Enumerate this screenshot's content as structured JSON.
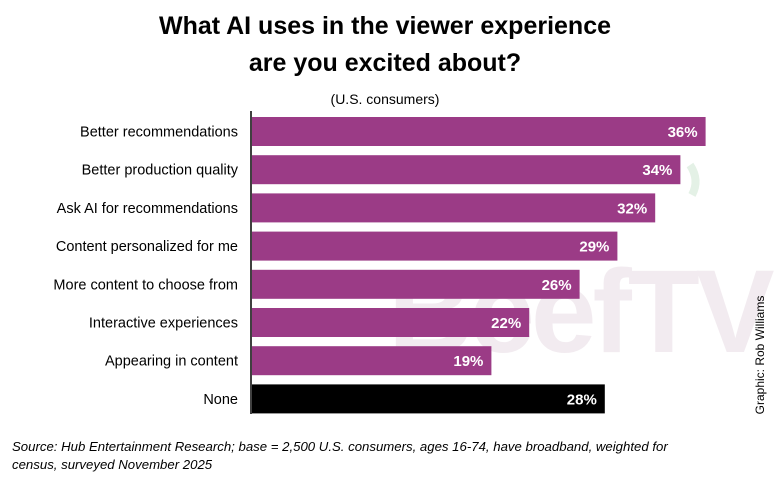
{
  "colors": {
    "bar": "#9b3b86",
    "highlight_bar": "#000000",
    "bar_label": "#ffffff",
    "text": "#000000",
    "axis": "#000000",
    "watermark": "#e8dce4"
  },
  "watermark": {
    "text": "BeefTV"
  },
  "credit": "Graphic: Rob Williams",
  "source": {
    "line1": "Source: Hub Entertainment Research; base = 2,500 U.S. consumers, ages 16-74, have broadband, weighted for",
    "line2": "census, surveyed November 2025"
  },
  "chart_data": {
    "type": "bar",
    "orientation": "horizontal",
    "title_lines": [
      "What AI uses in the viewer experience",
      "are you excited about?"
    ],
    "subtitle": "(U.S. consumers)",
    "categories": [
      "Better recommendations",
      "Better production quality",
      "Ask AI for recommendations",
      "Content personalized for me",
      "More content to choose from",
      "Interactive experiences",
      "Appearing in content",
      "None"
    ],
    "values": [
      36,
      34,
      32,
      29,
      26,
      22,
      19,
      28
    ],
    "value_labels": [
      "36%",
      "34%",
      "32%",
      "29%",
      "26%",
      "22%",
      "19%",
      "28%"
    ],
    "highlight_index": 7,
    "xlim": [
      0,
      40
    ],
    "unit": "%",
    "grid": false,
    "legend": "none"
  }
}
